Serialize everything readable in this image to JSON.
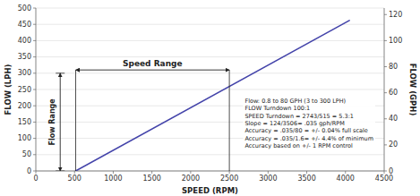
{
  "chart_data": {
    "type": "line",
    "x_label": "SPEED (RPM)",
    "y_label": "FLOW (LPH)",
    "y2_label": "FLOW (GPH)",
    "xlim": [
      0,
      4500
    ],
    "ylim": [
      0,
      500
    ],
    "y2lim": [
      0,
      125
    ],
    "xticks": [
      0,
      500,
      1000,
      1500,
      2000,
      2500,
      3000,
      3500,
      4000,
      4500
    ],
    "yticks": [
      0,
      50,
      100,
      150,
      200,
      250,
      300,
      350,
      400,
      450,
      500
    ],
    "y2ticks": [
      0,
      20,
      40,
      60,
      80,
      100,
      120
    ],
    "grid": true,
    "x": [
      515,
      4050
    ],
    "series": [
      {
        "color": "#4444aa",
        "values": [
          0,
          462
        ]
      }
    ],
    "annotations": [
      {
        "text": "Speed Range",
        "x": [
          515,
          2500
        ],
        "y": 310
      },
      {
        "text": "Flow Range",
        "y": [
          0,
          300
        ]
      },
      {
        "text": "Flow: 0.8 to 80 GPH (3 to 300 LPH)\nFLOW Turndown 100:1\nSPEED Turndown = 2743/515 = 5.3:1\nSlope = 124/3506= .035 gph/RPM\nAccuracy = .035/80 = +/- 0.04% full scale\nAccuracy = .035/1.6= +/- 4.4% of minimum\nAccuracy based on +/- 1 RPM control"
      }
    ]
  }
}
